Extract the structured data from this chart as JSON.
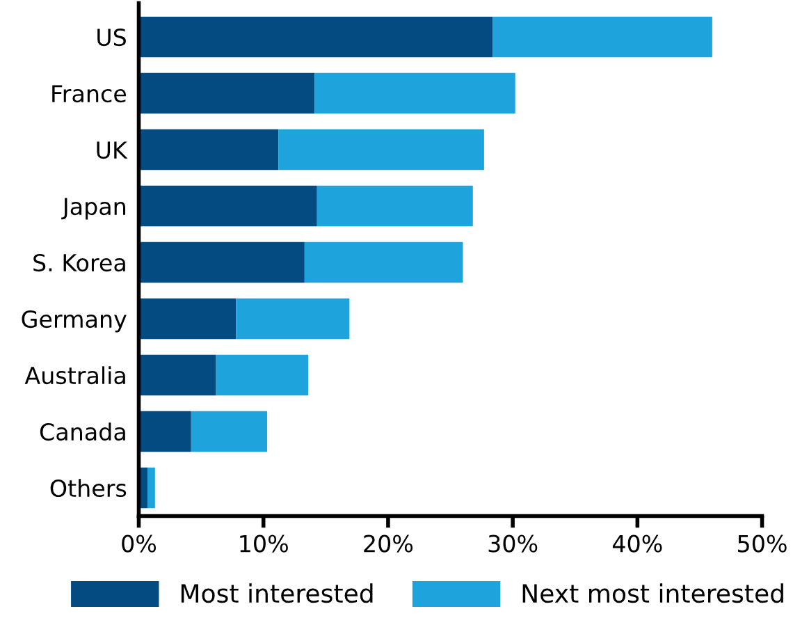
{
  "chart_data": {
    "type": "bar",
    "orientation": "horizontal",
    "stacked": true,
    "categories": [
      "US",
      "France",
      "UK",
      "Japan",
      "S. Korea",
      "Germany",
      "Australia",
      "Canada",
      "Others"
    ],
    "series": [
      {
        "name": "Most interested",
        "color": "#034b80",
        "values": [
          28.4,
          14.1,
          11.2,
          14.3,
          13.3,
          7.8,
          6.2,
          4.2,
          0.7
        ]
      },
      {
        "name": "Next most interested",
        "color": "#1ea3dd",
        "values": [
          17.6,
          16.1,
          16.5,
          12.5,
          12.7,
          9.1,
          7.4,
          6.1,
          0.6
        ]
      }
    ],
    "xlim": [
      0,
      50
    ],
    "xticks": [
      {
        "value": 0,
        "label": "0%"
      },
      {
        "value": 10,
        "label": "10%"
      },
      {
        "value": 20,
        "label": "20%"
      },
      {
        "value": 30,
        "label": "30%"
      },
      {
        "value": 40,
        "label": "40%"
      },
      {
        "value": 50,
        "label": "50%"
      }
    ],
    "grid": false,
    "legend": "bottom"
  }
}
